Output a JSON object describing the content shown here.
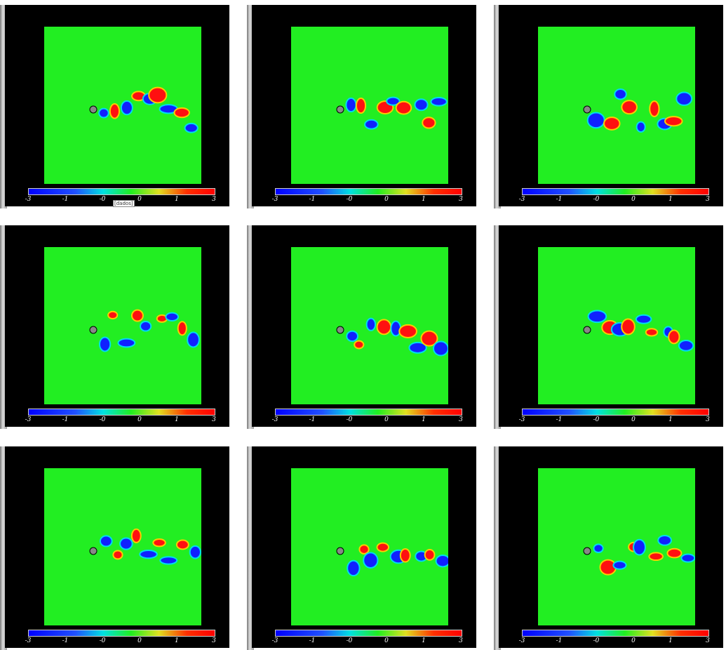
{
  "panels": [
    {
      "colorbar_ticks": [
        "-3",
        "-1",
        "-0",
        "0",
        "1",
        "3"
      ],
      "tooltip": "[dados]"
    },
    {
      "colorbar_ticks": [
        "-3",
        "-1",
        "-0",
        "0",
        "1",
        "3"
      ]
    },
    {
      "colorbar_ticks": [
        "-3",
        "-1",
        "-0",
        "0",
        "1",
        "3"
      ]
    },
    {
      "colorbar_ticks": [
        "-3",
        "-1",
        "-0",
        "0",
        "1",
        "3"
      ]
    },
    {
      "colorbar_ticks": [
        "-3",
        "-1",
        "-0",
        "0",
        "1",
        "3"
      ]
    },
    {
      "colorbar_ticks": [
        "-3",
        "-1",
        "-0",
        "0",
        "1",
        "3"
      ]
    },
    {
      "colorbar_ticks": [
        "-3",
        "-1",
        "-0",
        "0",
        "1",
        "3"
      ]
    },
    {
      "colorbar_ticks": [
        "-3",
        "-1",
        "-0",
        "0",
        "1",
        "3"
      ]
    },
    {
      "colorbar_ticks": [
        "-3",
        "-1",
        "-0",
        "0",
        "1",
        "3"
      ]
    }
  ]
}
